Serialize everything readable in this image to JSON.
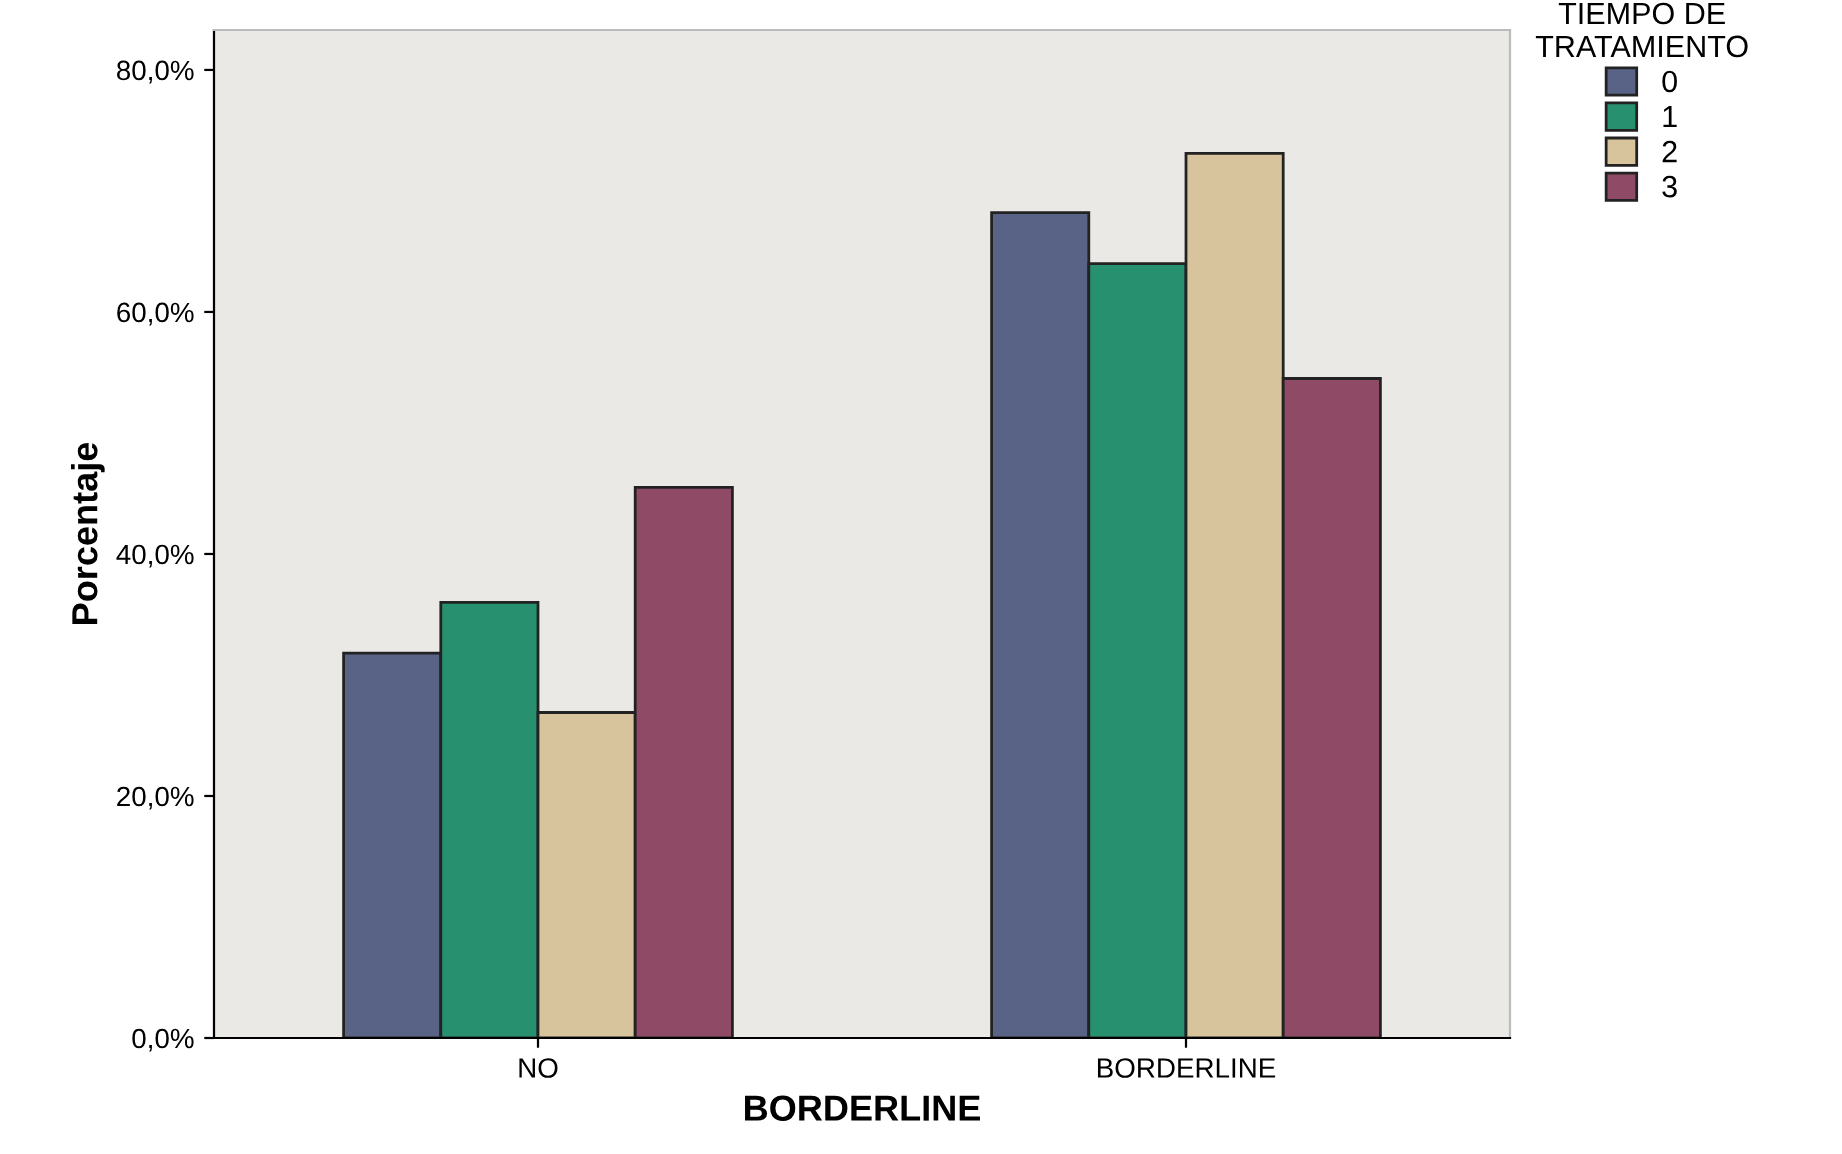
{
  "chart_data": {
    "type": "bar",
    "xlabel": "BORDERLINE",
    "ylabel": "Porcentaje",
    "legend_title": "TIEMPO DE\nTRATAMIENTO",
    "categories": [
      "NO",
      "BORDERLINE"
    ],
    "series": [
      {
        "name": "0",
        "color": "#586386",
        "values": [
          31.8,
          68.2
        ]
      },
      {
        "name": "1",
        "color": "#27916f",
        "values": [
          36.0,
          64.0
        ]
      },
      {
        "name": "2",
        "color": "#d7c49c",
        "values": [
          26.9,
          73.1
        ]
      },
      {
        "name": "3",
        "color": "#8f4a65",
        "values": [
          45.5,
          54.5
        ]
      }
    ],
    "ylim": [
      0,
      83.3
    ],
    "yticks": [
      {
        "value": 0,
        "label": "0,0%"
      },
      {
        "value": 20,
        "label": "20,0%"
      },
      {
        "value": 40,
        "label": "40,0%"
      },
      {
        "value": 60,
        "label": "60,0%"
      },
      {
        "value": 80,
        "label": "80,0%"
      }
    ],
    "grid": false,
    "legend": "top right"
  }
}
